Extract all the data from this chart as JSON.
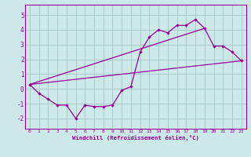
{
  "xlabel": "Windchill (Refroidissement éolien,°C)",
  "bg_color": "#cce8e8",
  "grid_color": "#aacccc",
  "line_color": "#990099",
  "xlim": [
    -0.5,
    23.5
  ],
  "ylim": [
    -2.7,
    5.7
  ],
  "xticks": [
    0,
    1,
    2,
    3,
    4,
    5,
    6,
    7,
    8,
    9,
    10,
    11,
    12,
    13,
    14,
    15,
    16,
    17,
    18,
    19,
    20,
    21,
    22,
    23
  ],
  "yticks": [
    -2,
    -1,
    0,
    1,
    2,
    3,
    4,
    5
  ],
  "line1_x": [
    0,
    1,
    2,
    3,
    4,
    5,
    6,
    7,
    8,
    9,
    10,
    11,
    12,
    13,
    14,
    15,
    16,
    17,
    18,
    19,
    20,
    21,
    22,
    23
  ],
  "line1_y": [
    0.3,
    -0.3,
    -0.7,
    -1.1,
    -1.1,
    -2.0,
    -1.1,
    -1.2,
    -1.2,
    -1.1,
    -0.1,
    0.15,
    2.5,
    3.5,
    4.0,
    3.8,
    4.3,
    4.3,
    4.7,
    4.1,
    2.9,
    2.9,
    2.5,
    1.9
  ],
  "line2_x": [
    0,
    23
  ],
  "line2_y": [
    0.3,
    1.9
  ],
  "line3_x": [
    0,
    19
  ],
  "line3_y": [
    0.3,
    4.1
  ],
  "marker_x": [
    0,
    1,
    2,
    3,
    4,
    5,
    6,
    7,
    8,
    9,
    10,
    11,
    12,
    13,
    14,
    15,
    16,
    17,
    18,
    19,
    20,
    21,
    22,
    23
  ],
  "marker_y": [
    0.3,
    -0.3,
    -0.7,
    -1.1,
    -1.1,
    -2.0,
    -1.1,
    -1.2,
    -1.2,
    -1.1,
    -0.1,
    0.15,
    2.5,
    3.5,
    4.0,
    3.8,
    4.3,
    4.3,
    4.7,
    4.1,
    2.9,
    2.9,
    2.5,
    1.9
  ]
}
